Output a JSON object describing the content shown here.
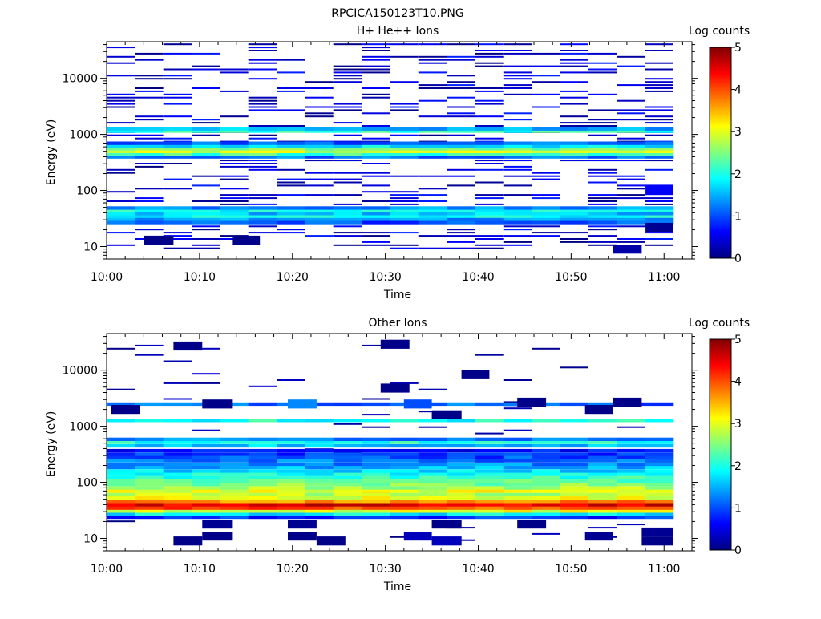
{
  "figure_title": "RPCICA150123T10.PNG",
  "colors": {
    "colormap": "jet",
    "colormap_stops": [
      "#00007f",
      "#0000ff",
      "#007fff",
      "#00ffff",
      "#7fff7f",
      "#ffff00",
      "#ff7f00",
      "#ff0000",
      "#7f0000"
    ]
  },
  "chart_data": [
    {
      "type": "heatmap",
      "title": "H+ He++ Ions",
      "xlabel": "Time",
      "ylabel": "Energy (eV)",
      "yscale": "log",
      "ylim": [
        6,
        45000
      ],
      "x_ticks": [
        "10:00",
        "10:10",
        "10:20",
        "10:30",
        "10:40",
        "10:50",
        "11:00"
      ],
      "y_ticks": [
        "10",
        "100",
        "1000",
        "10000"
      ],
      "xlim_minutes": [
        0,
        63
      ],
      "time_bins": 20,
      "colorbar": {
        "label": "Log counts",
        "range": [
          0,
          5
        ],
        "ticks": [
          "0",
          "1",
          "2",
          "3",
          "4",
          "5"
        ]
      },
      "bands": [
        {
          "e": 27,
          "v": 1.0
        },
        {
          "e": 31,
          "v": 1.4
        },
        {
          "e": 35,
          "v": 1.9
        },
        {
          "e": 39,
          "v": 1.6
        },
        {
          "e": 44,
          "v": 2.0
        },
        {
          "e": 49,
          "v": 1.3
        },
        {
          "e": 400,
          "v": 1.2
        },
        {
          "e": 450,
          "v": 2.2
        },
        {
          "e": 500,
          "v": 2.9
        },
        {
          "e": 560,
          "v": 2.5
        },
        {
          "e": 630,
          "v": 1.8
        },
        {
          "e": 700,
          "v": 1.1
        },
        {
          "e": 1150,
          "v": 2.1
        },
        {
          "e": 1260,
          "v": 1.5
        }
      ],
      "sparse": {
        "emin": 9,
        "emax": 40000,
        "fill": 0.35,
        "vmax": 0.8
      },
      "blocks": [
        {
          "t0": 4,
          "t1": 7.2,
          "e": 13,
          "v": 0.05
        },
        {
          "t0": 13.5,
          "t1": 16.5,
          "e": 13,
          "v": 0.05
        },
        {
          "t0": 54.5,
          "t1": 57.6,
          "e": 9,
          "v": 0.2
        },
        {
          "t0": 58,
          "t1": 61,
          "e": 22,
          "v": 0.1
        },
        {
          "t0": 58,
          "t1": 61,
          "e": 100,
          "v": 0.6
        }
      ]
    },
    {
      "type": "heatmap",
      "title": "Other Ions",
      "xlabel": "Time",
      "ylabel": "Energy (eV)",
      "yscale": "log",
      "ylim": [
        6,
        45000
      ],
      "x_ticks": [
        "10:00",
        "10:10",
        "10:20",
        "10:30",
        "10:40",
        "10:50",
        "11:00"
      ],
      "y_ticks": [
        "10",
        "100",
        "1000",
        "10000"
      ],
      "xlim_minutes": [
        0,
        63
      ],
      "time_bins": 20,
      "colorbar": {
        "label": "Log counts",
        "range": [
          0,
          5
        ],
        "ticks": [
          "0",
          "1",
          "2",
          "3",
          "4",
          "5"
        ]
      },
      "bands": [
        {
          "e": 24,
          "v": 0.8
        },
        {
          "e": 27,
          "v": 1.8
        },
        {
          "e": 31,
          "v": 3.0
        },
        {
          "e": 35,
          "v": 4.0
        },
        {
          "e": 40,
          "v": 4.5
        },
        {
          "e": 46,
          "v": 3.7
        },
        {
          "e": 53,
          "v": 3.0
        },
        {
          "e": 61,
          "v": 2.8
        },
        {
          "e": 70,
          "v": 3.0
        },
        {
          "e": 80,
          "v": 2.7
        },
        {
          "e": 92,
          "v": 2.5
        },
        {
          "e": 106,
          "v": 2.3
        },
        {
          "e": 122,
          "v": 2.1
        },
        {
          "e": 140,
          "v": 1.9
        },
        {
          "e": 160,
          "v": 1.7
        },
        {
          "e": 185,
          "v": 1.5
        },
        {
          "e": 212,
          "v": 1.3
        },
        {
          "e": 245,
          "v": 1.2
        },
        {
          "e": 280,
          "v": 1.0
        },
        {
          "e": 320,
          "v": 0.9
        },
        {
          "e": 370,
          "v": 0.7
        },
        {
          "e": 450,
          "v": 1.6
        },
        {
          "e": 520,
          "v": 2.0
        },
        {
          "e": 590,
          "v": 1.3
        },
        {
          "e": 1280,
          "v": 2.0
        },
        {
          "e": 2500,
          "v": 1.1
        }
      ],
      "sparse": {
        "emin": 9,
        "emax": 30000,
        "fill": 0.05,
        "vmax": 0.4
      },
      "blocks": [
        {
          "t0": 7.2,
          "t1": 10.3,
          "e": 9,
          "v": 0.05
        },
        {
          "t0": 10.3,
          "t1": 13.5,
          "e": 11,
          "v": 0.05
        },
        {
          "t0": 10.3,
          "t1": 13.5,
          "e": 18,
          "v": 0.1
        },
        {
          "t0": 19.5,
          "t1": 22.6,
          "e": 11,
          "v": 0.05
        },
        {
          "t0": 19.5,
          "t1": 22.6,
          "e": 18,
          "v": 0.1
        },
        {
          "t0": 22.6,
          "t1": 25.7,
          "e": 9,
          "v": 0.05
        },
        {
          "t0": 32,
          "t1": 35,
          "e": 11,
          "v": 0.3
        },
        {
          "t0": 35,
          "t1": 38.2,
          "e": 9,
          "v": 0.3
        },
        {
          "t0": 35,
          "t1": 38.2,
          "e": 18,
          "v": 0.05
        },
        {
          "t0": 44.2,
          "t1": 47.3,
          "e": 18,
          "v": 0.05
        },
        {
          "t0": 51.5,
          "t1": 54.5,
          "e": 11,
          "v": 0.1
        },
        {
          "t0": 57.6,
          "t1": 61,
          "e": 9,
          "v": 0.05
        },
        {
          "t0": 57.6,
          "t1": 61,
          "e": 13,
          "v": 0.1
        },
        {
          "t0": 7.2,
          "t1": 10.3,
          "e": 27000,
          "v": 0.05
        },
        {
          "t0": 29.5,
          "t1": 32.6,
          "e": 29000,
          "v": 0.05
        },
        {
          "t0": 29.5,
          "t1": 32.6,
          "e": 4800,
          "v": 0.05
        },
        {
          "t0": 38.2,
          "t1": 41.2,
          "e": 8300,
          "v": 0.05
        },
        {
          "t0": 0.5,
          "t1": 3.6,
          "e": 2000,
          "v": 0.05
        },
        {
          "t0": 10.3,
          "t1": 13.5,
          "e": 2500,
          "v": 0.05
        },
        {
          "t0": 19.5,
          "t1": 22.6,
          "e": 2500,
          "v": 1.3
        },
        {
          "t0": 32,
          "t1": 35,
          "e": 2500,
          "v": 1.0
        },
        {
          "t0": 35,
          "t1": 38.2,
          "e": 1600,
          "v": 0.05
        },
        {
          "t0": 44.2,
          "t1": 47.3,
          "e": 2700,
          "v": 0.05
        },
        {
          "t0": 51.5,
          "t1": 54.5,
          "e": 2000,
          "v": 0.05
        },
        {
          "t0": 54.5,
          "t1": 57.6,
          "e": 2700,
          "v": 0.05
        }
      ]
    }
  ]
}
